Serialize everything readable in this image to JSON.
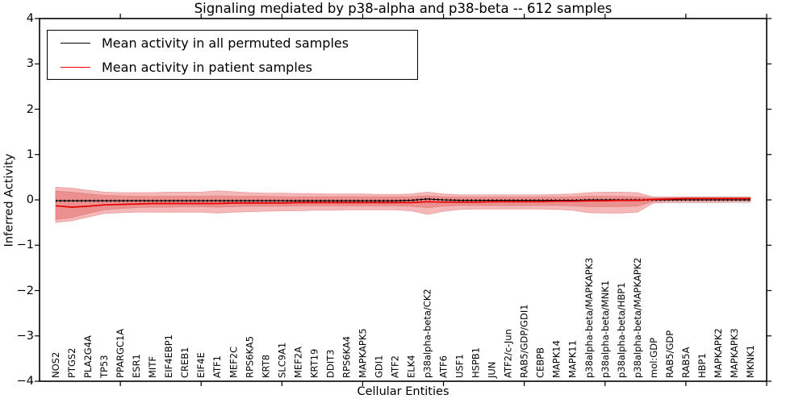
{
  "title": "Signaling mediated by p38-alpha and p38-beta -- 612 samples",
  "legend": {
    "items": [
      {
        "label": "Mean activity in all permuted samples",
        "color": "#000000"
      },
      {
        "label": "Mean activity in patient samples",
        "color": "#ff0000"
      }
    ]
  },
  "axes": {
    "ylabel": "Inferred Activity",
    "xlabel": "Cellular Entities",
    "ylim": [
      -4,
      4
    ],
    "yticks": [
      {
        "value": 4,
        "label": "4"
      },
      {
        "value": 3,
        "label": "3"
      },
      {
        "value": 2,
        "label": "2"
      },
      {
        "value": 1,
        "label": "1"
      },
      {
        "value": 0,
        "label": "0"
      },
      {
        "value": -1,
        "label": "−1"
      },
      {
        "value": -2,
        "label": "−2"
      },
      {
        "value": -3,
        "label": "−3"
      },
      {
        "value": -4,
        "label": "−4"
      }
    ]
  },
  "chart_data": {
    "type": "line",
    "title": "Signaling mediated by p38-alpha and p38-beta -- 612 samples",
    "xlabel": "Cellular Entities",
    "ylabel": "Inferred Activity",
    "ylim": [
      -4,
      4
    ],
    "grid": false,
    "legend_position": "upper left",
    "categories": [
      "NOS2",
      "PTGS2",
      "PLA2G4A",
      "TP53",
      "PPARGC1A",
      "ESR1",
      "MITF",
      "EIF4EBP1",
      "CREB1",
      "EIF4E",
      "ATF1",
      "MEF2C",
      "RPS6KA5",
      "KRT8",
      "SLC9A1",
      "MEF2A",
      "KRT19",
      "DDIT3",
      "RPS6KA4",
      "MAPKAPK5",
      "GDI1",
      "ATF2",
      "ELK4",
      "p38alpha-beta/CK2",
      "ATF6",
      "USF1",
      "HSPB1",
      "JUN",
      "ATF2/c-Jun",
      "RAB5/GDP/GDI1",
      "CEBPB",
      "MAPK14",
      "MAPK11",
      "p38alpha-beta/MAPKAPK3",
      "p38alpha-beta/MNK1",
      "p38alpha-beta/HBP1",
      "p38alpha-beta/MAPKAPK2",
      "mol:GDP",
      "RAB5/GDP",
      "RAB5A",
      "HBP1",
      "MAPKAPK2",
      "MAPKAPK3",
      "MKNK1"
    ],
    "series": [
      {
        "name": "Mean activity in all permuted samples",
        "color": "#000000",
        "style": "dashed",
        "values": [
          -0.02,
          -0.02,
          -0.02,
          -0.02,
          -0.02,
          -0.02,
          -0.02,
          -0.02,
          -0.02,
          -0.02,
          -0.02,
          -0.02,
          -0.02,
          -0.02,
          -0.02,
          -0.02,
          -0.02,
          -0.02,
          -0.02,
          -0.02,
          -0.02,
          -0.02,
          -0.01,
          0.02,
          0.0,
          -0.01,
          -0.01,
          -0.01,
          -0.01,
          -0.01,
          -0.01,
          -0.01,
          -0.01,
          0.0,
          0.0,
          0.0,
          0.0,
          0.0,
          0.0,
          0.0,
          0.0,
          0.0,
          0.0,
          0.0
        ]
      },
      {
        "name": "Mean activity in patient samples",
        "color": "#e60000",
        "style": "solid",
        "values": [
          -0.13,
          -0.16,
          -0.14,
          -0.11,
          -0.1,
          -0.09,
          -0.08,
          -0.08,
          -0.08,
          -0.08,
          -0.08,
          -0.07,
          -0.07,
          -0.07,
          -0.07,
          -0.06,
          -0.06,
          -0.06,
          -0.06,
          -0.06,
          -0.06,
          -0.06,
          -0.06,
          -0.04,
          -0.05,
          -0.05,
          -0.05,
          -0.04,
          -0.04,
          -0.04,
          -0.04,
          -0.03,
          -0.03,
          -0.02,
          -0.02,
          -0.01,
          -0.01,
          0.01,
          0.02,
          0.03,
          0.03,
          0.03,
          0.03,
          0.03
        ]
      }
    ],
    "bands": [
      {
        "name": "permuted-samples-range",
        "color": "#e3e3e3",
        "edge": "#d0d0d0",
        "upper": [
          0.07,
          0.07,
          0.07,
          0.07,
          0.07,
          0.07,
          0.07,
          0.07,
          0.07,
          0.07,
          0.07,
          0.07,
          0.07,
          0.07,
          0.07,
          0.07,
          0.07,
          0.07,
          0.07,
          0.07,
          0.07,
          0.07,
          0.07,
          0.07,
          0.07,
          0.07,
          0.07,
          0.07,
          0.07,
          0.07,
          0.07,
          0.07,
          0.07,
          0.07,
          0.07,
          0.07,
          0.07,
          0.07,
          0.07,
          0.07,
          0.07,
          0.07,
          0.07,
          0.07
        ],
        "lower": [
          -0.07,
          -0.07,
          -0.07,
          -0.07,
          -0.07,
          -0.07,
          -0.07,
          -0.07,
          -0.07,
          -0.07,
          -0.07,
          -0.07,
          -0.07,
          -0.07,
          -0.07,
          -0.07,
          -0.07,
          -0.07,
          -0.07,
          -0.07,
          -0.07,
          -0.07,
          -0.07,
          -0.07,
          -0.07,
          -0.07,
          -0.07,
          -0.07,
          -0.07,
          -0.07,
          -0.07,
          -0.07,
          -0.07,
          -0.07,
          -0.07,
          -0.07,
          -0.07,
          -0.07,
          -0.07,
          -0.07,
          -0.07,
          -0.07,
          -0.07,
          -0.07
        ]
      },
      {
        "name": "patient-samples-outer-range",
        "color": "#f5b2b2",
        "edge": "#eb9595",
        "upper": [
          0.28,
          0.26,
          0.21,
          0.17,
          0.16,
          0.16,
          0.16,
          0.17,
          0.17,
          0.17,
          0.2,
          0.18,
          0.16,
          0.15,
          0.15,
          0.14,
          0.14,
          0.13,
          0.13,
          0.13,
          0.12,
          0.12,
          0.13,
          0.17,
          0.13,
          0.11,
          0.11,
          0.11,
          0.11,
          0.11,
          0.11,
          0.12,
          0.13,
          0.16,
          0.17,
          0.17,
          0.16,
          0.06,
          0.06,
          0.06,
          0.06,
          0.06,
          0.06,
          0.06
        ],
        "lower": [
          -0.5,
          -0.46,
          -0.38,
          -0.3,
          -0.28,
          -0.27,
          -0.27,
          -0.27,
          -0.27,
          -0.27,
          -0.29,
          -0.27,
          -0.26,
          -0.25,
          -0.24,
          -0.24,
          -0.23,
          -0.23,
          -0.22,
          -0.22,
          -0.22,
          -0.22,
          -0.24,
          -0.32,
          -0.25,
          -0.21,
          -0.2,
          -0.2,
          -0.2,
          -0.2,
          -0.2,
          -0.21,
          -0.23,
          -0.28,
          -0.29,
          -0.29,
          -0.27,
          -0.07,
          -0.05,
          -0.05,
          -0.05,
          -0.05,
          -0.04,
          -0.04
        ]
      },
      {
        "name": "patient-samples-inner-range",
        "color": "#ec8c8c",
        "edge": "#e37f7f",
        "upper": [
          0.19,
          0.17,
          0.13,
          0.1,
          0.09,
          0.08,
          0.08,
          0.08,
          0.08,
          0.08,
          0.09,
          0.08,
          0.08,
          0.08,
          0.07,
          0.07,
          0.07,
          0.07,
          0.07,
          0.07,
          0.07,
          0.07,
          0.07,
          0.09,
          0.07,
          0.06,
          0.06,
          0.06,
          0.06,
          0.06,
          0.06,
          0.06,
          0.07,
          0.08,
          0.08,
          0.08,
          0.07,
          0.04,
          0.05,
          0.05,
          0.05,
          0.05,
          0.05,
          0.05
        ],
        "lower": [
          -0.43,
          -0.39,
          -0.3,
          -0.22,
          -0.19,
          -0.17,
          -0.16,
          -0.16,
          -0.15,
          -0.15,
          -0.16,
          -0.15,
          -0.14,
          -0.14,
          -0.14,
          -0.13,
          -0.13,
          -0.13,
          -0.13,
          -0.13,
          -0.13,
          -0.13,
          -0.14,
          -0.17,
          -0.14,
          -0.12,
          -0.12,
          -0.12,
          -0.12,
          -0.12,
          -0.12,
          -0.12,
          -0.13,
          -0.15,
          -0.15,
          -0.15,
          -0.14,
          -0.03,
          -0.01,
          -0.01,
          -0.01,
          -0.01,
          -0.01,
          -0.01
        ]
      }
    ]
  }
}
